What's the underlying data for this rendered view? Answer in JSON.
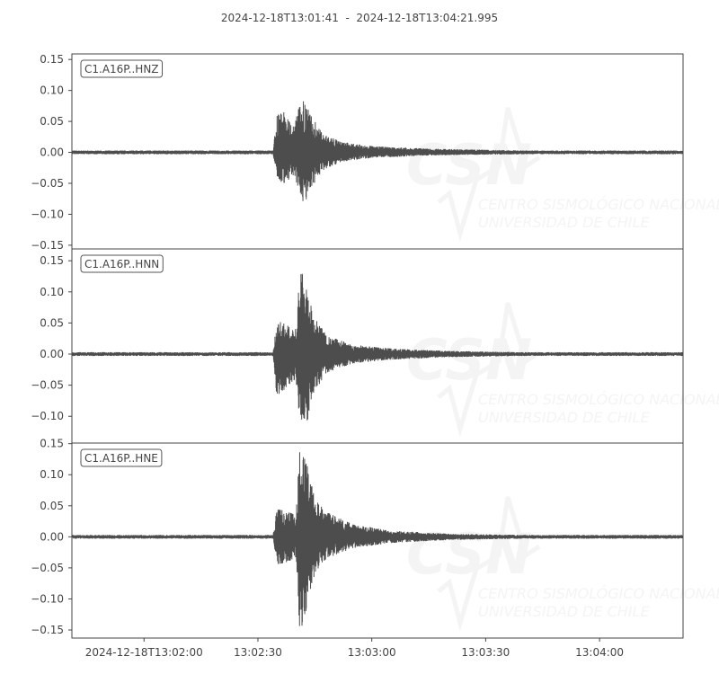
{
  "title": "2024-12-18T13:01:41  -  2024-12-18T13:04:21.995",
  "watermark": {
    "logo": "CSN",
    "line1": "CENTRO SISMOLÓGICO NACIONAL",
    "line2": "UNIVERSIDAD DE CHILE"
  },
  "colors": {
    "trace": "#4d4d4d",
    "axis": "#444444",
    "watermark": "#f4f4f4"
  },
  "chart_data": {
    "type": "line",
    "x_range": [
      "13:01:41",
      "13:04:21.995"
    ],
    "x_tick_labels": [
      "2024-12-18T13:02:00",
      "13:02:30",
      "13:03:00",
      "13:03:30",
      "13:04:00"
    ],
    "x_ticks": [
      "13:02:00",
      "13:02:30",
      "13:03:00",
      "13:03:30",
      "13:04:00"
    ],
    "grid": false,
    "panels": [
      {
        "name": "C1.A16P..HNZ",
        "ylim": [
          -0.156,
          0.159
        ],
        "y_tick_labels": [
          "0.15",
          "0.10",
          "0.05",
          "0.00",
          "−0.05",
          "−0.10",
          "−0.15"
        ],
        "y_ticks": [
          0.15,
          0.1,
          0.05,
          0,
          -0.05,
          -0.1,
          -0.15
        ],
        "envelope": [
          [
            "13:01:41",
            0.003,
            -0.003
          ],
          [
            "13:02:34",
            0.003,
            -0.003
          ],
          [
            "13:02:35",
            0.06,
            -0.04
          ],
          [
            "13:02:37",
            0.065,
            -0.055
          ],
          [
            "13:02:39",
            0.04,
            -0.035
          ],
          [
            "13:02:41",
            0.075,
            -0.06
          ],
          [
            "13:02:42",
            0.087,
            -0.085
          ],
          [
            "13:02:44",
            0.06,
            -0.06
          ],
          [
            "13:02:47",
            0.03,
            -0.03
          ],
          [
            "13:02:52",
            0.017,
            -0.015
          ],
          [
            "13:03:00",
            0.01,
            -0.009
          ],
          [
            "13:03:15",
            0.006,
            -0.005
          ],
          [
            "13:03:40",
            0.003,
            -0.003
          ],
          [
            "13:04:00",
            0.003,
            -0.003
          ],
          [
            "13:04:21.995",
            0.003,
            -0.003
          ]
        ]
      },
      {
        "name": "C1.A16P..HNN",
        "ylim": [
          -0.143,
          0.169
        ],
        "y_tick_labels": [
          "0.15",
          "0.10",
          "0.05",
          "0.00",
          "−0.05",
          "−0.10"
        ],
        "y_ticks": [
          0.15,
          0.1,
          0.05,
          0,
          -0.05,
          -0.1
        ],
        "envelope": [
          [
            "13:01:41",
            0.003,
            -0.003
          ],
          [
            "13:02:34",
            0.003,
            -0.003
          ],
          [
            "13:02:35",
            0.055,
            -0.07
          ],
          [
            "13:02:38",
            0.045,
            -0.05
          ],
          [
            "13:02:40",
            0.04,
            -0.04
          ],
          [
            "13:02:41",
            0.125,
            -0.105
          ],
          [
            "13:02:42",
            0.135,
            -0.11
          ],
          [
            "13:02:43",
            0.1,
            -0.11
          ],
          [
            "13:02:45",
            0.06,
            -0.06
          ],
          [
            "13:02:48",
            0.03,
            -0.03
          ],
          [
            "13:02:55",
            0.015,
            -0.015
          ],
          [
            "13:03:05",
            0.009,
            -0.009
          ],
          [
            "13:03:20",
            0.005,
            -0.005
          ],
          [
            "13:03:40",
            0.003,
            -0.003
          ],
          [
            "13:04:21.995",
            0.003,
            -0.003
          ]
        ]
      },
      {
        "name": "C1.A16P..HNE",
        "ylim": [
          -0.163,
          0.151
        ],
        "y_tick_labels": [
          "0.15",
          "0.10",
          "0.05",
          "0.00",
          "−0.05",
          "−0.10",
          "−0.15"
        ],
        "y_ticks": [
          0.15,
          0.1,
          0.05,
          0,
          -0.05,
          -0.1,
          -0.15
        ],
        "envelope": [
          [
            "13:01:41",
            0.003,
            -0.003
          ],
          [
            "13:02:34",
            0.003,
            -0.003
          ],
          [
            "13:02:35",
            0.045,
            -0.045
          ],
          [
            "13:02:38",
            0.04,
            -0.04
          ],
          [
            "13:02:40",
            0.035,
            -0.035
          ],
          [
            "13:02:41",
            0.137,
            -0.148
          ],
          [
            "13:02:42",
            0.13,
            -0.14
          ],
          [
            "13:02:43",
            0.115,
            -0.11
          ],
          [
            "13:02:45",
            0.06,
            -0.06
          ],
          [
            "13:02:48",
            0.04,
            -0.035
          ],
          [
            "13:02:55",
            0.02,
            -0.018
          ],
          [
            "13:03:05",
            0.01,
            -0.01
          ],
          [
            "13:03:20",
            0.005,
            -0.005
          ],
          [
            "13:03:40",
            0.003,
            -0.003
          ],
          [
            "13:04:21.995",
            0.003,
            -0.003
          ]
        ]
      }
    ]
  }
}
